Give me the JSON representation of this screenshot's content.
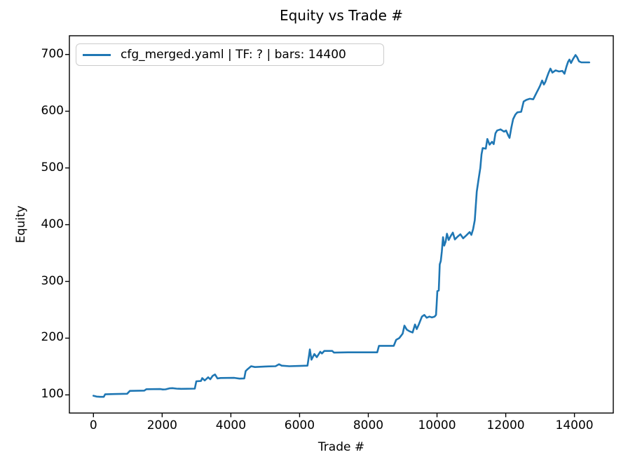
{
  "chart_data": {
    "type": "line",
    "title": "Equity vs Trade #",
    "xlabel": "Trade #",
    "ylabel": "Equity",
    "grid": false,
    "legend": {
      "position": "upper left",
      "entries": [
        {
          "label": "cfg_merged.yaml | TF: ? | bars: 14400",
          "color": "#1f77b4"
        }
      ]
    },
    "xlim": [
      -700,
      15130
    ],
    "ylim": [
      68,
      733
    ],
    "xticks": [
      0,
      2000,
      4000,
      6000,
      8000,
      10000,
      12000,
      14000
    ],
    "yticks": [
      100,
      200,
      300,
      400,
      500,
      600,
      700
    ],
    "colors": {
      "line": "#1f77b4",
      "spine": "#000000",
      "legend_border": "#cccccc"
    },
    "series": [
      {
        "name": "cfg_merged.yaml | TF: ? | bars: 14400",
        "color": "#1f77b4",
        "x": [
          0,
          90,
          200,
          300,
          340,
          600,
          980,
          1060,
          1480,
          1540,
          1950,
          2020,
          2100,
          2210,
          2300,
          2420,
          2550,
          2950,
          2995,
          3130,
          3165,
          3240,
          3340,
          3400,
          3470,
          3540,
          3610,
          3700,
          4100,
          4250,
          4390,
          4430,
          4490,
          4590,
          4700,
          5000,
          5300,
          5400,
          5480,
          5700,
          6000,
          6230,
          6280,
          6300,
          6345,
          6430,
          6500,
          6600,
          6650,
          6720,
          6950,
          7000,
          7400,
          8260,
          8310,
          8740,
          8810,
          8900,
          8950,
          9000,
          9050,
          9120,
          9200,
          9290,
          9360,
          9410,
          9470,
          9560,
          9630,
          9700,
          9780,
          9850,
          9930,
          9970,
          9990,
          10010,
          10050,
          10080,
          10110,
          10140,
          10175,
          10210,
          10250,
          10290,
          10340,
          10400,
          10460,
          10520,
          10600,
          10680,
          10760,
          10850,
          10950,
          11000,
          11050,
          11100,
          11157,
          11210,
          11260,
          11295,
          11330,
          11420,
          11465,
          11530,
          11600,
          11650,
          11700,
          11750,
          11850,
          11950,
          12010,
          12075,
          12110,
          12160,
          12215,
          12280,
          12340,
          12450,
          12520,
          12600,
          12700,
          12800,
          12900,
          12960,
          13000,
          13060,
          13110,
          13155,
          13200,
          13250,
          13300,
          13360,
          13450,
          13550,
          13650,
          13710,
          13770,
          13815,
          13855,
          13900,
          13960,
          14030,
          14080,
          14130,
          14200,
          14430
        ],
        "y": [
          98.5,
          97,
          96.5,
          96.5,
          101,
          101.5,
          102,
          107,
          107.5,
          110,
          110.3,
          109.5,
          109.8,
          111.5,
          111.8,
          111,
          110.6,
          111,
          124,
          124.5,
          129.5,
          125.5,
          131,
          127.5,
          133.5,
          136,
          129,
          129.8,
          130,
          128.6,
          129,
          142,
          145.5,
          150.5,
          149,
          150,
          150.5,
          154,
          151.5,
          150.5,
          151,
          151.5,
          172,
          180,
          162,
          172,
          166.5,
          176,
          173,
          177.5,
          177.5,
          174.5,
          175,
          175,
          186.5,
          186.5,
          197,
          200,
          204,
          208,
          222,
          215,
          212,
          210,
          224,
          216,
          224,
          238,
          241,
          236,
          238,
          236.5,
          238,
          241,
          260,
          283,
          284,
          330,
          336,
          353,
          378,
          363,
          370,
          384,
          373,
          380,
          386,
          374,
          379,
          383,
          376,
          381,
          387,
          382,
          392,
          408,
          458,
          480,
          500,
          524,
          535,
          534,
          551,
          541,
          546,
          542,
          561,
          566,
          568,
          564,
          566,
          557,
          553,
          570,
          586,
          594,
          598,
          599,
          617,
          620,
          622,
          621,
          633,
          640,
          645,
          654,
          647,
          652,
          660,
          668,
          675,
          668,
          672,
          670,
          671,
          666,
          679,
          687,
          691,
          685,
          692,
          699,
          695,
          688,
          686,
          686
        ]
      }
    ]
  }
}
